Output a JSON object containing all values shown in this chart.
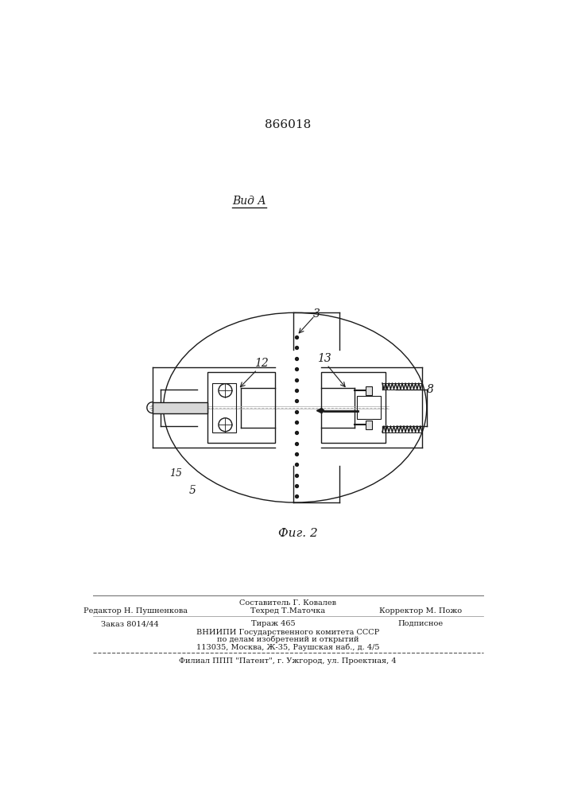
{
  "patent_number": "866018",
  "view_label": "Вид А",
  "fig_label": "Фиг. 2",
  "footer_line1": "Составитель Г. Ковалев",
  "footer_line2_left": "Редактор Н. Пушненкова",
  "footer_line2_mid": "Техред Т.Маточка",
  "footer_line2_right": "Корректор М. Пожо",
  "footer_line3_left": "Заказ 8014/44",
  "footer_line3_mid": "Тираж 465",
  "footer_line3_right": "Подписное",
  "footer_line4": "ВНИИПИ Государственного комитета СССР",
  "footer_line5": "по делам изобретений и открытий",
  "footer_line6": "113035, Москва, Ж-35, Раушская наб., д. 4/5",
  "footer_line7": "Филиал ППП \"Патент\", г. Ужгород, ул. Проектная, 4",
  "bg_color": "#ffffff",
  "line_color": "#1a1a1a"
}
